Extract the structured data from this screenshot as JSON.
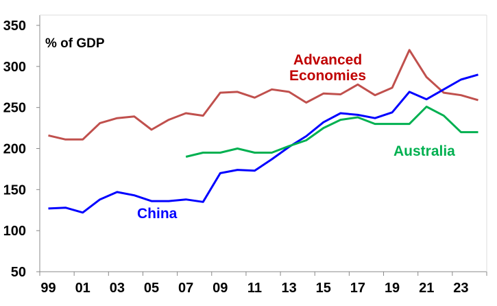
{
  "chart_data": {
    "type": "line",
    "title": "",
    "ylabel": "% of GDP",
    "xlabel": "",
    "ylim": [
      50,
      350
    ],
    "yticks": [
      50,
      100,
      150,
      200,
      250,
      300,
      350
    ],
    "x": [
      1999,
      2000,
      2001,
      2002,
      2003,
      2004,
      2005,
      2006,
      2007,
      2008,
      2009,
      2010,
      2011,
      2012,
      2013,
      2014,
      2015,
      2016,
      2017,
      2018,
      2019,
      2020,
      2021,
      2022,
      2023,
      2024
    ],
    "xtick_labels": [
      "99",
      "01",
      "03",
      "05",
      "07",
      "09",
      "11",
      "13",
      "15",
      "17",
      "19",
      "21",
      "23"
    ],
    "grid": false,
    "series": [
      {
        "name": "Advanced Economies",
        "color": "#c0504d",
        "label_color": "#c00000",
        "values": [
          216,
          211,
          211,
          231,
          237,
          239,
          223,
          235,
          243,
          240,
          268,
          269,
          262,
          272,
          269,
          256,
          267,
          266,
          278,
          265,
          274,
          320,
          287,
          268,
          265,
          259
        ]
      },
      {
        "name": "China",
        "color": "#0000ff",
        "label_color": "#0000ff",
        "values": [
          127,
          128,
          122,
          138,
          147,
          143,
          136,
          136,
          138,
          135,
          170,
          174,
          173,
          187,
          202,
          215,
          232,
          243,
          241,
          237,
          244,
          269,
          260,
          272,
          284,
          290
        ]
      },
      {
        "name": "Australia",
        "color": "#00b050",
        "label_color": "#00b050",
        "values": [
          null,
          null,
          null,
          null,
          null,
          null,
          null,
          null,
          190,
          195,
          195,
          200,
          195,
          195,
          203,
          210,
          225,
          235,
          238,
          230,
          230,
          230,
          251,
          240,
          220,
          220
        ]
      }
    ]
  }
}
